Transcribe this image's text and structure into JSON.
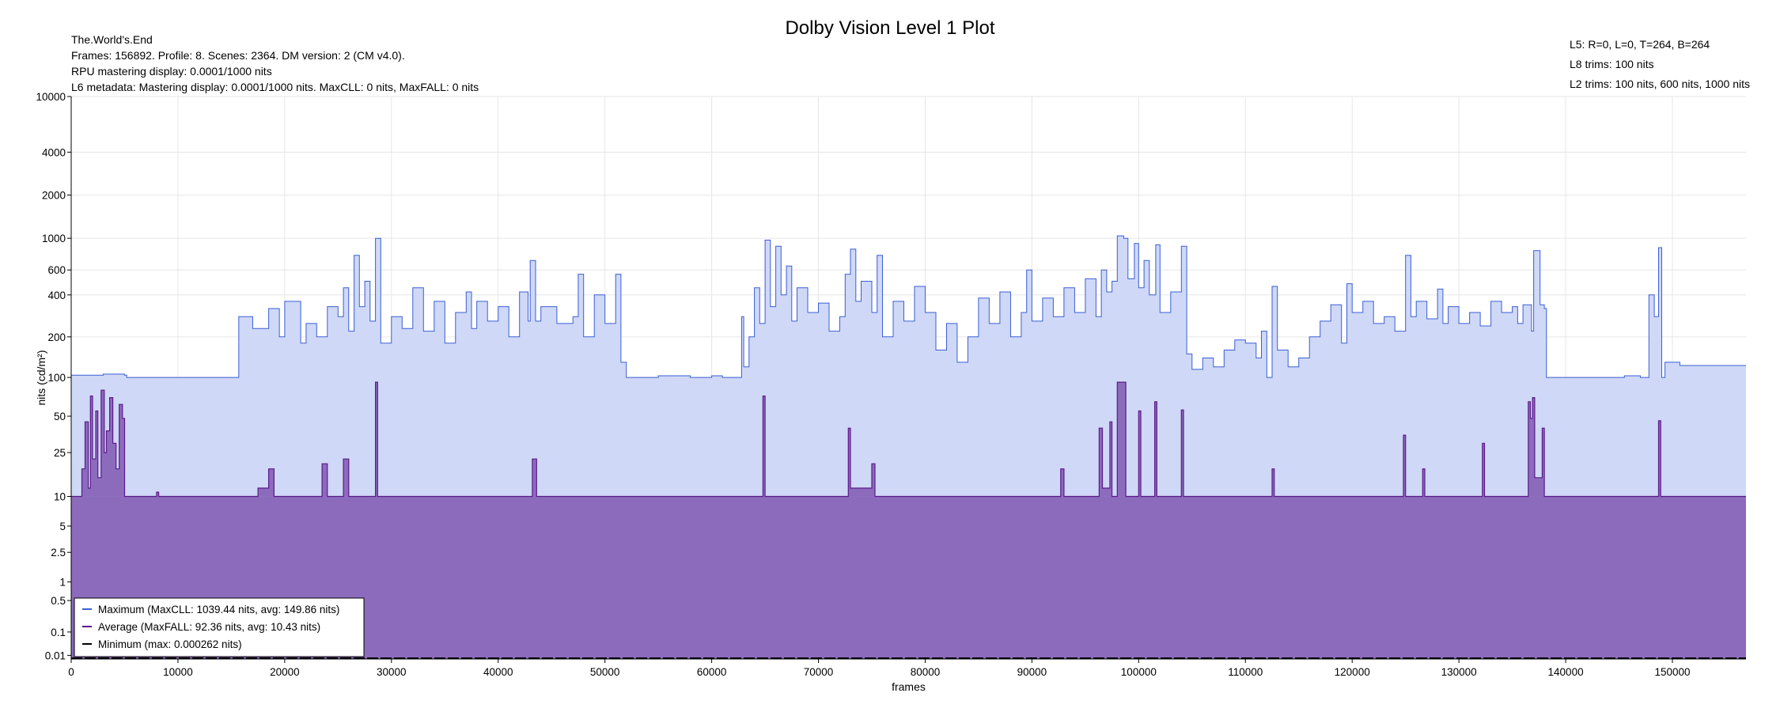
{
  "title": "Dolby Vision Level 1 Plot",
  "info_left": [
    "The.World's.End",
    "Frames: 156892. Profile: 8. Scenes: 2364. DM version: 2 (CM v4.0).",
    "RPU mastering display: 0.0001/1000 nits",
    "L6 metadata: Mastering display: 0.0001/1000 nits. MaxCLL: 0 nits, MaxFALL: 0 nits"
  ],
  "info_right": [
    "L5: R=0, L=0, T=264, B=264",
    "L8 trims: 100 nits",
    "L2 trims: 100 nits, 600 nits, 1000 nits"
  ],
  "colors": {
    "max_line": "#3a5fd6",
    "max_fill": "#cfd8f6",
    "avg_line": "#5b1a8a",
    "avg_fill": "#8c6bbd",
    "min_line": "#000000",
    "grid": "#e6e6e6"
  },
  "chart_data": {
    "type": "area",
    "xlabel": "frames",
    "ylabel": "nits (cd/m²)",
    "xlim": [
      0,
      156892
    ],
    "ylim": [
      0.005,
      10000
    ],
    "yscale": "pq",
    "x_ticks": [
      0,
      10000,
      20000,
      30000,
      40000,
      50000,
      60000,
      70000,
      80000,
      90000,
      100000,
      110000,
      120000,
      130000,
      140000,
      150000
    ],
    "y_ticks": [
      0.01,
      0.1,
      0.5,
      1,
      2.5,
      5,
      10,
      25,
      50,
      100,
      200,
      400,
      600,
      1000,
      2000,
      4000,
      10000
    ],
    "y_tick_labels": [
      "0.01",
      "0.1",
      "0.5",
      "1",
      "2.5",
      "5",
      "10",
      "25",
      "50",
      "100",
      "200",
      "400",
      "600",
      "1000",
      "2000",
      "4000",
      "10000"
    ],
    "grid": true,
    "legend_position": "bottom-left",
    "series": [
      {
        "name": "Maximum (MaxCLL: 1039.44 nits, avg: 149.86 nits)",
        "baseline": 100,
        "points": [
          [
            0,
            104
          ],
          [
            3000,
            106
          ],
          [
            5000,
            104
          ],
          [
            5200,
            100
          ],
          [
            15500,
            100
          ],
          [
            15700,
            280
          ],
          [
            17000,
            230
          ],
          [
            18500,
            320
          ],
          [
            19500,
            200
          ],
          [
            20000,
            360
          ],
          [
            21500,
            180
          ],
          [
            22000,
            250
          ],
          [
            23000,
            200
          ],
          [
            24000,
            330
          ],
          [
            25000,
            280
          ],
          [
            25500,
            450
          ],
          [
            26000,
            220
          ],
          [
            26500,
            760
          ],
          [
            27000,
            330
          ],
          [
            27500,
            500
          ],
          [
            28000,
            260
          ],
          [
            28500,
            1000
          ],
          [
            29000,
            180
          ],
          [
            30000,
            280
          ],
          [
            31000,
            230
          ],
          [
            32000,
            450
          ],
          [
            33000,
            220
          ],
          [
            34000,
            360
          ],
          [
            35000,
            180
          ],
          [
            36000,
            300
          ],
          [
            37000,
            420
          ],
          [
            37500,
            230
          ],
          [
            38000,
            360
          ],
          [
            39000,
            260
          ],
          [
            40000,
            330
          ],
          [
            41000,
            200
          ],
          [
            42000,
            420
          ],
          [
            42800,
            260
          ],
          [
            43000,
            700
          ],
          [
            43500,
            260
          ],
          [
            44000,
            330
          ],
          [
            45500,
            250
          ],
          [
            47000,
            280
          ],
          [
            47500,
            560
          ],
          [
            48000,
            200
          ],
          [
            49000,
            400
          ],
          [
            50000,
            250
          ],
          [
            51000,
            560
          ],
          [
            51500,
            130
          ],
          [
            52000,
            100
          ],
          [
            55000,
            103
          ],
          [
            58000,
            100
          ],
          [
            60000,
            103
          ],
          [
            61000,
            100
          ],
          [
            62000,
            100
          ],
          [
            62500,
            100
          ],
          [
            62800,
            280
          ],
          [
            63000,
            120
          ],
          [
            63500,
            200
          ],
          [
            64000,
            450
          ],
          [
            64500,
            250
          ],
          [
            65000,
            970
          ],
          [
            65500,
            330
          ],
          [
            66000,
            880
          ],
          [
            66500,
            400
          ],
          [
            67000,
            640
          ],
          [
            67500,
            260
          ],
          [
            68000,
            450
          ],
          [
            69000,
            300
          ],
          [
            70000,
            350
          ],
          [
            71000,
            220
          ],
          [
            72000,
            280
          ],
          [
            72500,
            560
          ],
          [
            73000,
            840
          ],
          [
            73500,
            360
          ],
          [
            74000,
            500
          ],
          [
            75000,
            300
          ],
          [
            75500,
            760
          ],
          [
            76000,
            200
          ],
          [
            77000,
            360
          ],
          [
            78000,
            260
          ],
          [
            79000,
            460
          ],
          [
            80000,
            300
          ],
          [
            81000,
            160
          ],
          [
            82000,
            250
          ],
          [
            83000,
            130
          ],
          [
            84000,
            200
          ],
          [
            85000,
            380
          ],
          [
            86000,
            250
          ],
          [
            87000,
            420
          ],
          [
            88000,
            200
          ],
          [
            89000,
            300
          ],
          [
            89500,
            600
          ],
          [
            90000,
            260
          ],
          [
            91000,
            380
          ],
          [
            92000,
            280
          ],
          [
            93000,
            450
          ],
          [
            94000,
            300
          ],
          [
            95000,
            520
          ],
          [
            96000,
            280
          ],
          [
            96500,
            600
          ],
          [
            97000,
            420
          ],
          [
            97500,
            500
          ],
          [
            98000,
            1039
          ],
          [
            98600,
            1000
          ],
          [
            99000,
            520
          ],
          [
            99600,
            920
          ],
          [
            100000,
            450
          ],
          [
            100500,
            700
          ],
          [
            101000,
            400
          ],
          [
            101600,
            900
          ],
          [
            102000,
            300
          ],
          [
            103000,
            420
          ],
          [
            104000,
            880
          ],
          [
            104500,
            150
          ],
          [
            105000,
            115
          ],
          [
            106000,
            140
          ],
          [
            107000,
            120
          ],
          [
            108000,
            160
          ],
          [
            109000,
            190
          ],
          [
            110000,
            180
          ],
          [
            111000,
            140
          ],
          [
            111500,
            220
          ],
          [
            112000,
            100
          ],
          [
            112500,
            460
          ],
          [
            113000,
            160
          ],
          [
            114000,
            120
          ],
          [
            115000,
            140
          ],
          [
            116000,
            200
          ],
          [
            117000,
            260
          ],
          [
            118000,
            340
          ],
          [
            119000,
            180
          ],
          [
            119500,
            480
          ],
          [
            120000,
            300
          ],
          [
            121000,
            360
          ],
          [
            122000,
            250
          ],
          [
            123000,
            280
          ],
          [
            124000,
            220
          ],
          [
            125000,
            760
          ],
          [
            125500,
            280
          ],
          [
            126000,
            360
          ],
          [
            127000,
            270
          ],
          [
            128000,
            440
          ],
          [
            128500,
            250
          ],
          [
            129000,
            330
          ],
          [
            130000,
            250
          ],
          [
            131000,
            300
          ],
          [
            132000,
            240
          ],
          [
            133000,
            360
          ],
          [
            134000,
            300
          ],
          [
            135000,
            330
          ],
          [
            135500,
            250
          ],
          [
            136000,
            340
          ],
          [
            136800,
            220
          ],
          [
            137000,
            820
          ],
          [
            137600,
            340
          ],
          [
            138000,
            320
          ],
          [
            138200,
            100
          ],
          [
            145000,
            100
          ],
          [
            145500,
            103
          ],
          [
            147000,
            100
          ],
          [
            147500,
            100
          ],
          [
            147800,
            400
          ],
          [
            148300,
            280
          ],
          [
            148700,
            860
          ],
          [
            149000,
            100
          ],
          [
            149300,
            130
          ],
          [
            150500,
            130
          ],
          [
            150700,
            123
          ],
          [
            156892,
            123
          ]
        ]
      },
      {
        "name": "Average (MaxFALL: 92.36 nits, avg: 10.43 nits)",
        "baseline": 10,
        "points": [
          [
            0,
            10
          ],
          [
            1000,
            18
          ],
          [
            1300,
            45
          ],
          [
            1600,
            12
          ],
          [
            1800,
            72
          ],
          [
            2000,
            22
          ],
          [
            2300,
            55
          ],
          [
            2500,
            15
          ],
          [
            2800,
            80
          ],
          [
            3100,
            25
          ],
          [
            3300,
            38
          ],
          [
            3600,
            70
          ],
          [
            3900,
            30
          ],
          [
            4200,
            18
          ],
          [
            4500,
            62
          ],
          [
            4800,
            48
          ],
          [
            5000,
            10
          ],
          [
            8000,
            11
          ],
          [
            8200,
            10
          ],
          [
            17500,
            12
          ],
          [
            18500,
            18
          ],
          [
            19000,
            10
          ],
          [
            23500,
            20
          ],
          [
            24000,
            10
          ],
          [
            25500,
            22
          ],
          [
            26000,
            10
          ],
          [
            28500,
            92
          ],
          [
            28700,
            10
          ],
          [
            43200,
            22
          ],
          [
            43600,
            10
          ],
          [
            64800,
            72
          ],
          [
            65000,
            10
          ],
          [
            72800,
            40
          ],
          [
            73000,
            12
          ],
          [
            75000,
            20
          ],
          [
            75300,
            10
          ],
          [
            92700,
            18
          ],
          [
            93000,
            10
          ],
          [
            96300,
            40
          ],
          [
            96600,
            12
          ],
          [
            97300,
            45
          ],
          [
            97500,
            10
          ],
          [
            98000,
            92
          ],
          [
            98600,
            92
          ],
          [
            98800,
            10
          ],
          [
            100000,
            55
          ],
          [
            100200,
            10
          ],
          [
            101500,
            65
          ],
          [
            101700,
            10
          ],
          [
            104000,
            56
          ],
          [
            104200,
            10
          ],
          [
            112500,
            18
          ],
          [
            112700,
            10
          ],
          [
            124800,
            35
          ],
          [
            125000,
            10
          ],
          [
            126600,
            18
          ],
          [
            126800,
            10
          ],
          [
            132200,
            30
          ],
          [
            132400,
            10
          ],
          [
            136500,
            65
          ],
          [
            136700,
            48
          ],
          [
            136900,
            70
          ],
          [
            137100,
            15
          ],
          [
            137800,
            40
          ],
          [
            138000,
            10
          ],
          [
            148700,
            46
          ],
          [
            148900,
            10
          ],
          [
            156892,
            10
          ]
        ]
      },
      {
        "name": "Minimum (max: 0.000262 nits)",
        "value": 0.005
      }
    ]
  }
}
